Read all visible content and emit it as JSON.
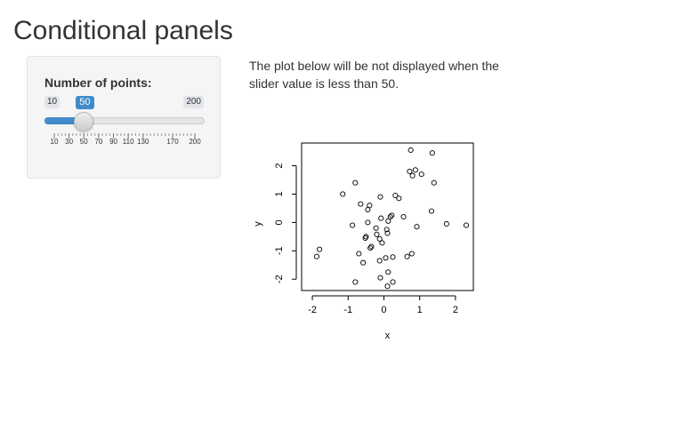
{
  "page": {
    "title": "Conditional panels",
    "description": "The plot below will be not displayed when the slider value is less than 50."
  },
  "slider": {
    "label": "Number of points:",
    "min": 10,
    "max": 200,
    "value": 50,
    "min_label": "10",
    "max_label": "200",
    "value_label": "50",
    "tick_labels": [
      "10",
      "30",
      "50",
      "70",
      "90",
      "110",
      "130",
      "170",
      "200"
    ],
    "accent_color": "#428bca"
  },
  "chart_data": {
    "type": "scatter",
    "title": "",
    "xlabel": "x",
    "ylabel": "y",
    "xlim": [
      -2.3,
      2.5
    ],
    "ylim": [
      -2.4,
      2.8
    ],
    "xticks": [
      "-2",
      "-1",
      "0",
      "1",
      "2"
    ],
    "yticks": [
      "-2",
      "-1",
      "0",
      "1",
      "2"
    ],
    "points": [
      [
        0.75,
        2.55
      ],
      [
        1.35,
        2.45
      ],
      [
        0.88,
        1.85
      ],
      [
        0.72,
        1.8
      ],
      [
        0.8,
        1.65
      ],
      [
        1.05,
        1.7
      ],
      [
        1.4,
        1.4
      ],
      [
        -0.8,
        1.4
      ],
      [
        -1.15,
        1.0
      ],
      [
        0.32,
        0.95
      ],
      [
        0.42,
        0.85
      ],
      [
        -0.1,
        0.9
      ],
      [
        -0.65,
        0.65
      ],
      [
        -0.4,
        0.6
      ],
      [
        -0.45,
        0.45
      ],
      [
        1.33,
        0.4
      ],
      [
        0.22,
        0.25
      ],
      [
        0.18,
        0.2
      ],
      [
        0.55,
        0.2
      ],
      [
        0.12,
        0.05
      ],
      [
        -0.08,
        0.15
      ],
      [
        -0.45,
        0.0
      ],
      [
        -0.88,
        -0.1
      ],
      [
        0.92,
        -0.15
      ],
      [
        1.75,
        -0.05
      ],
      [
        2.3,
        -0.1
      ],
      [
        0.08,
        -0.25
      ],
      [
        -0.22,
        -0.2
      ],
      [
        -0.2,
        -0.42
      ],
      [
        0.1,
        -0.38
      ],
      [
        -0.5,
        -0.5
      ],
      [
        -0.12,
        -0.58
      ],
      [
        -0.52,
        -0.55
      ],
      [
        -0.05,
        -0.72
      ],
      [
        -0.35,
        -0.85
      ],
      [
        -0.38,
        -0.9
      ],
      [
        -1.8,
        -0.95
      ],
      [
        -1.88,
        -1.2
      ],
      [
        -0.7,
        -1.1
      ],
      [
        0.78,
        -1.1
      ],
      [
        0.65,
        -1.2
      ],
      [
        0.05,
        -1.25
      ],
      [
        0.25,
        -1.22
      ],
      [
        -0.12,
        -1.35
      ],
      [
        -0.58,
        -1.42
      ],
      [
        0.12,
        -1.75
      ],
      [
        -0.1,
        -1.95
      ],
      [
        -0.8,
        -2.1
      ],
      [
        0.25,
        -2.1
      ],
      [
        0.1,
        -2.25
      ]
    ]
  }
}
